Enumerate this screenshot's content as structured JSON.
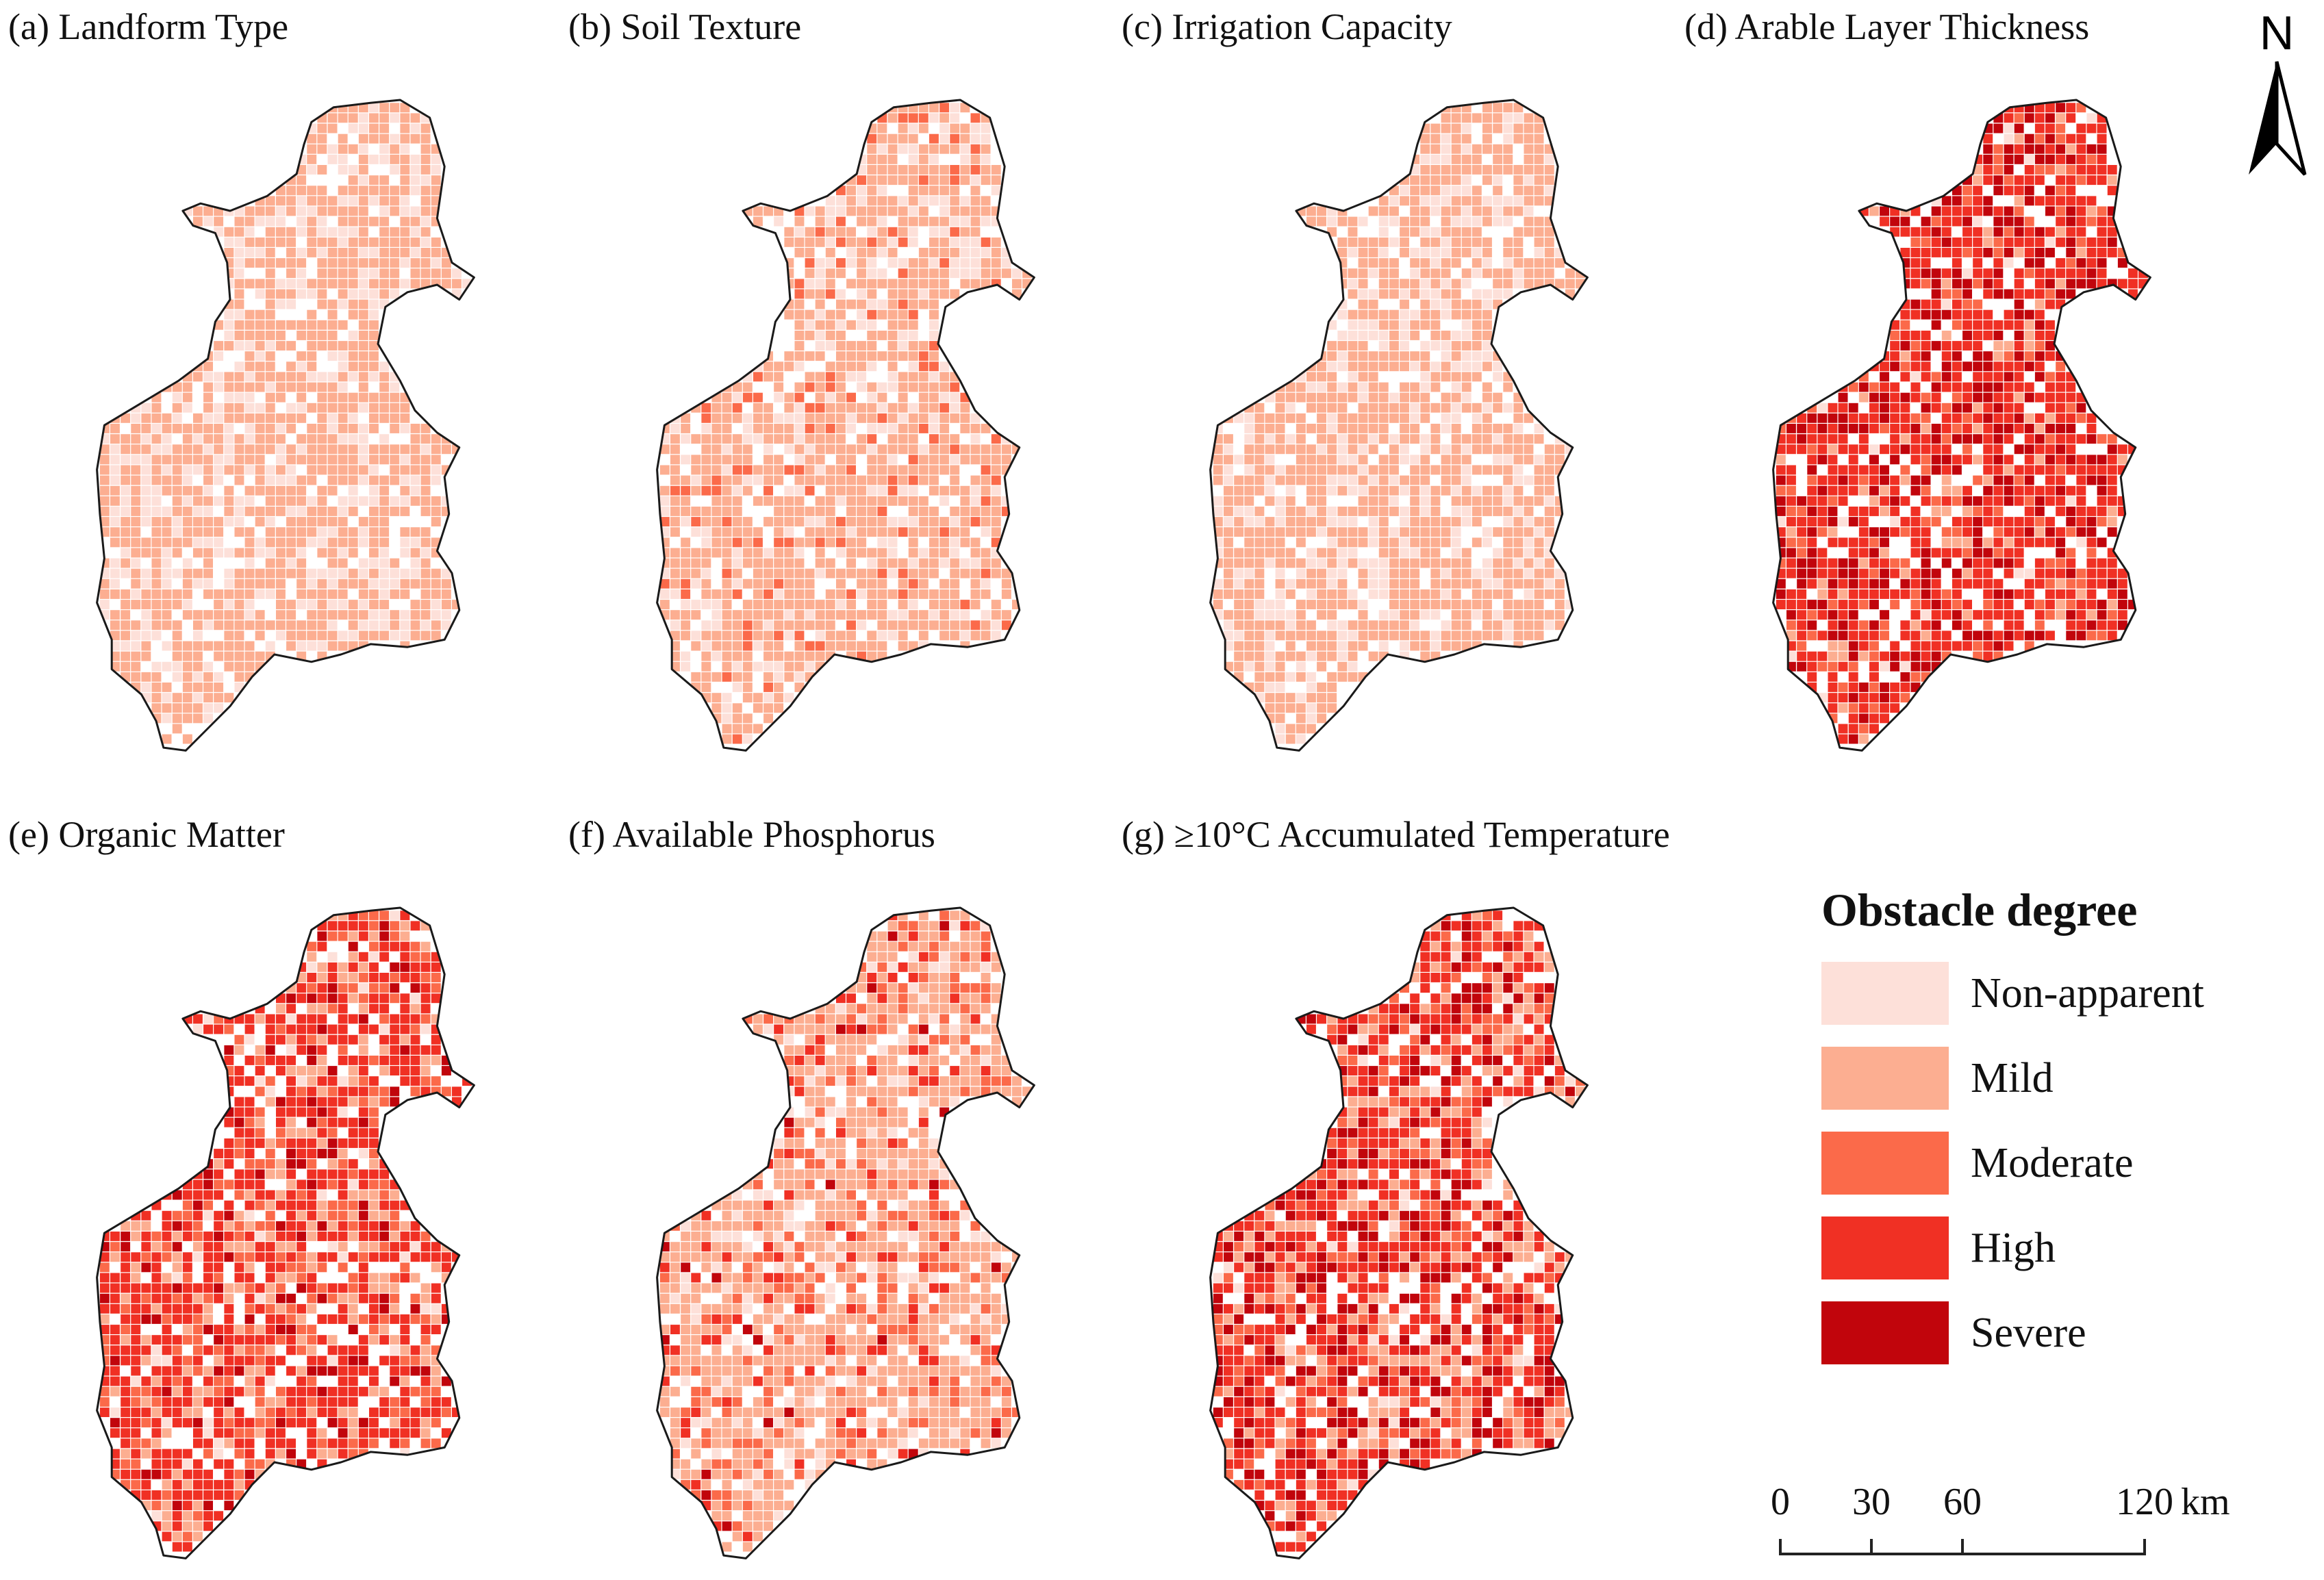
{
  "panels": [
    {
      "id": "a",
      "title": "(a) Landform Type",
      "weights": [
        0.3,
        0.7,
        0,
        0,
        0
      ]
    },
    {
      "id": "b",
      "title": "(b) Soil Texture",
      "weights": [
        0.22,
        0.68,
        0.1,
        0,
        0
      ]
    },
    {
      "id": "c",
      "title": "(c) Irrigation Capacity",
      "weights": [
        0.3,
        0.7,
        0,
        0,
        0
      ]
    },
    {
      "id": "d",
      "title": "(d) Arable Layer Thickness",
      "weights": [
        0.02,
        0.08,
        0.15,
        0.5,
        0.25
      ]
    },
    {
      "id": "e",
      "title": "(e) Organic Matter",
      "weights": [
        0.04,
        0.16,
        0.2,
        0.5,
        0.1
      ]
    },
    {
      "id": "f",
      "title": "(f) Available Phosphorus",
      "weights": [
        0.12,
        0.6,
        0.18,
        0.08,
        0.02
      ]
    },
    {
      "id": "g",
      "title": "(g) ≥10°C Accumulated Temperature",
      "weights": [
        0.03,
        0.22,
        0.15,
        0.4,
        0.2
      ]
    }
  ],
  "legend": {
    "title": "Obstacle degree",
    "items": [
      {
        "label": "Non-apparent",
        "color": "#fde0d9"
      },
      {
        "label": "Mild",
        "color": "#fcae91"
      },
      {
        "label": "Moderate",
        "color": "#fb6a4a"
      },
      {
        "label": "High",
        "color": "#f03024"
      },
      {
        "label": "Severe",
        "color": "#c1050c"
      }
    ]
  },
  "north_arrow": {
    "label": "N"
  },
  "scale_bar": {
    "ticks": [
      "0",
      "30",
      "60",
      "120"
    ],
    "unit": "km"
  }
}
